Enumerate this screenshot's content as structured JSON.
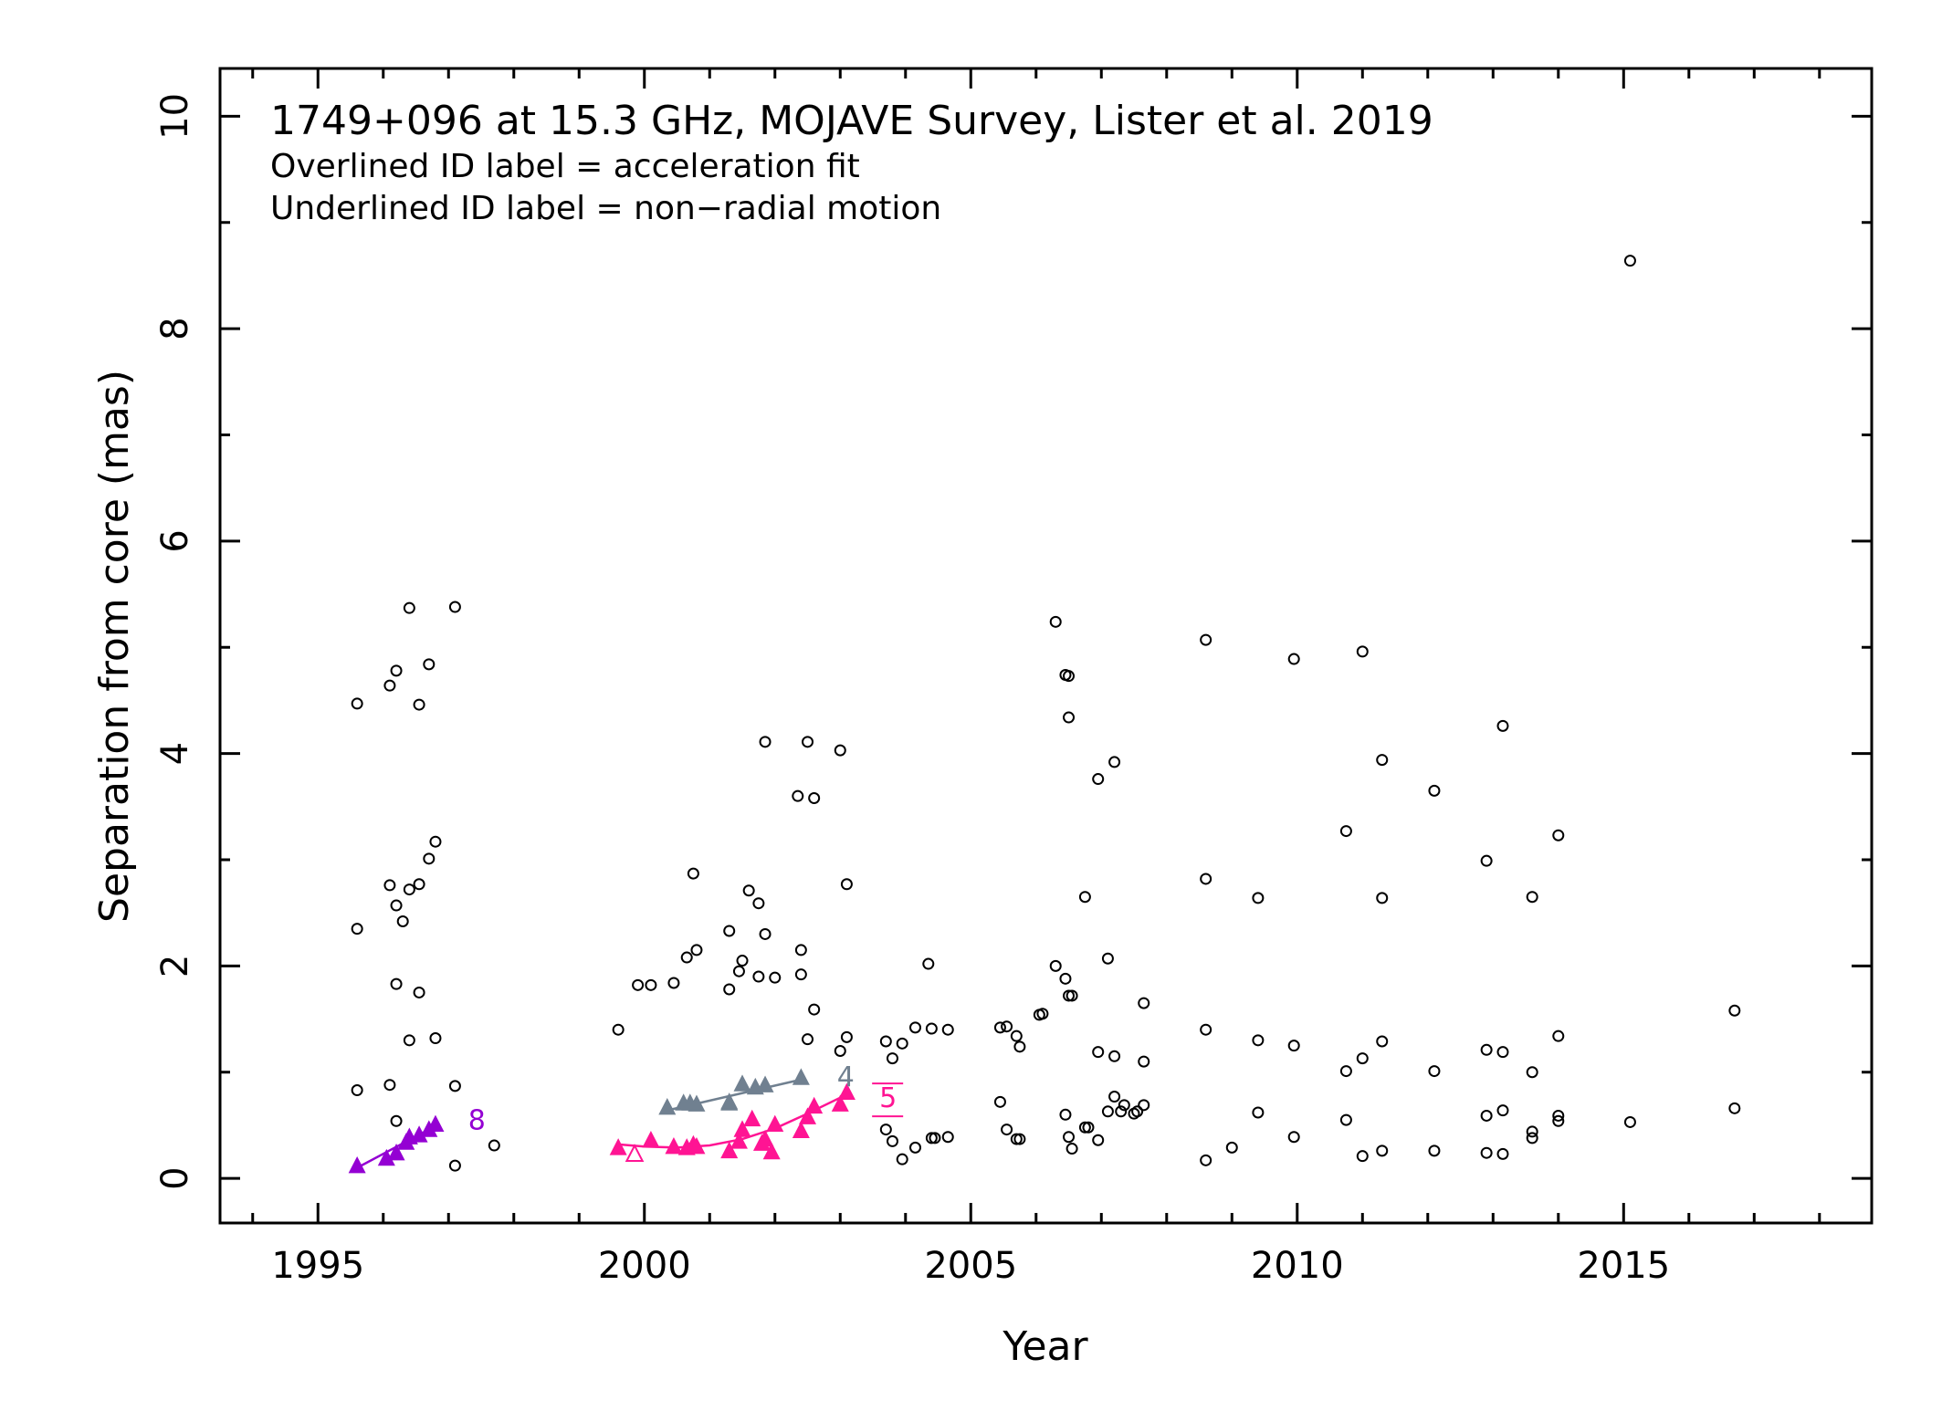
{
  "chart_data": {
    "type": "scatter",
    "title": "1749+096 at 15.3 GHz, MOJAVE Survey, Lister et al. 2019",
    "notes": [
      "Overlined ID label = acceleration fit",
      "Underlined ID label = non−radial motion"
    ],
    "xlabel": "Year",
    "ylabel": "Separation from core (mas)",
    "xlim": [
      1993.5,
      2018.8
    ],
    "ylim": [
      -0.42,
      10.45
    ],
    "x_ticks": [
      1995,
      2000,
      2005,
      2010,
      2015
    ],
    "y_ticks": [
      0,
      2,
      4,
      6,
      8,
      10
    ],
    "colors": {
      "axis": "#000000",
      "unassigned": "#000000"
    },
    "unassigned_points": [
      [
        1995.6,
        4.47
      ],
      [
        1995.6,
        2.35
      ],
      [
        1995.6,
        0.83
      ],
      [
        1996.1,
        4.64
      ],
      [
        1996.1,
        2.76
      ],
      [
        1996.1,
        0.88
      ],
      [
        1996.2,
        4.78
      ],
      [
        1996.2,
        2.57
      ],
      [
        1996.2,
        1.83
      ],
      [
        1996.2,
        0.54
      ],
      [
        1996.3,
        2.42
      ],
      [
        1996.4,
        5.37
      ],
      [
        1996.4,
        2.72
      ],
      [
        1996.4,
        1.3
      ],
      [
        1996.55,
        4.46
      ],
      [
        1996.55,
        2.77
      ],
      [
        1996.55,
        1.75
      ],
      [
        1996.7,
        4.84
      ],
      [
        1996.7,
        3.01
      ],
      [
        1996.8,
        3.17
      ],
      [
        1996.8,
        1.32
      ],
      [
        1997.1,
        5.38
      ],
      [
        1997.1,
        0.87
      ],
      [
        1997.1,
        0.12
      ],
      [
        1997.7,
        0.31
      ],
      [
        1999.6,
        1.4
      ],
      [
        1999.9,
        1.82
      ],
      [
        2000.1,
        1.82
      ],
      [
        2000.45,
        1.84
      ],
      [
        2000.65,
        2.08
      ],
      [
        2000.75,
        2.87
      ],
      [
        2000.8,
        2.15
      ],
      [
        2001.3,
        2.33
      ],
      [
        2001.3,
        1.78
      ],
      [
        2001.45,
        1.95
      ],
      [
        2001.5,
        2.05
      ],
      [
        2001.6,
        2.71
      ],
      [
        2001.75,
        2.59
      ],
      [
        2001.75,
        1.9
      ],
      [
        2001.85,
        2.3
      ],
      [
        2001.85,
        4.11
      ],
      [
        2002.0,
        1.89
      ],
      [
        2002.35,
        3.6
      ],
      [
        2002.4,
        2.15
      ],
      [
        2002.4,
        1.92
      ],
      [
        2002.5,
        4.11
      ],
      [
        2002.5,
        1.31
      ],
      [
        2002.6,
        3.58
      ],
      [
        2002.6,
        1.59
      ],
      [
        2003.0,
        4.03
      ],
      [
        2003.0,
        1.2
      ],
      [
        2003.1,
        2.77
      ],
      [
        2003.1,
        1.33
      ],
      [
        2003.7,
        1.29
      ],
      [
        2003.7,
        0.46
      ],
      [
        2003.8,
        1.13
      ],
      [
        2003.8,
        0.35
      ],
      [
        2003.95,
        1.27
      ],
      [
        2003.95,
        0.18
      ],
      [
        2004.15,
        1.42
      ],
      [
        2004.15,
        0.29
      ],
      [
        2004.35,
        2.02
      ],
      [
        2004.4,
        1.41
      ],
      [
        2004.4,
        0.38
      ],
      [
        2004.45,
        0.38
      ],
      [
        2004.65,
        1.4
      ],
      [
        2004.65,
        0.39
      ],
      [
        2005.45,
        1.42
      ],
      [
        2005.45,
        0.72
      ],
      [
        2005.55,
        1.43
      ],
      [
        2005.55,
        0.46
      ],
      [
        2005.7,
        1.34
      ],
      [
        2005.7,
        0.37
      ],
      [
        2005.75,
        1.24
      ],
      [
        2005.75,
        0.37
      ],
      [
        2006.05,
        1.54
      ],
      [
        2006.1,
        1.55
      ],
      [
        2006.3,
        5.24
      ],
      [
        2006.3,
        2.0
      ],
      [
        2006.45,
        4.74
      ],
      [
        2006.45,
        1.88
      ],
      [
        2006.45,
        0.6
      ],
      [
        2006.5,
        4.73
      ],
      [
        2006.5,
        4.34
      ],
      [
        2006.5,
        1.72
      ],
      [
        2006.5,
        0.39
      ],
      [
        2006.55,
        1.72
      ],
      [
        2006.55,
        0.28
      ],
      [
        2006.75,
        2.65
      ],
      [
        2006.75,
        0.48
      ],
      [
        2006.8,
        0.48
      ],
      [
        2006.95,
        3.76
      ],
      [
        2006.95,
        1.19
      ],
      [
        2006.95,
        0.36
      ],
      [
        2007.1,
        2.07
      ],
      [
        2007.1,
        0.63
      ],
      [
        2007.2,
        3.92
      ],
      [
        2007.2,
        1.15
      ],
      [
        2007.2,
        0.77
      ],
      [
        2007.3,
        0.63
      ],
      [
        2007.35,
        0.69
      ],
      [
        2007.5,
        0.61
      ],
      [
        2007.55,
        0.63
      ],
      [
        2007.65,
        1.65
      ],
      [
        2007.65,
        1.1
      ],
      [
        2007.65,
        0.69
      ],
      [
        2008.6,
        5.07
      ],
      [
        2008.6,
        2.82
      ],
      [
        2008.6,
        1.4
      ],
      [
        2008.6,
        0.17
      ],
      [
        2009.0,
        0.29
      ],
      [
        2009.4,
        2.64
      ],
      [
        2009.4,
        1.3
      ],
      [
        2009.4,
        0.62
      ],
      [
        2009.95,
        4.89
      ],
      [
        2009.95,
        1.25
      ],
      [
        2009.95,
        0.39
      ],
      [
        2010.75,
        3.27
      ],
      [
        2010.75,
        1.01
      ],
      [
        2010.75,
        0.55
      ],
      [
        2011.0,
        4.96
      ],
      [
        2011.0,
        1.13
      ],
      [
        2011.0,
        0.21
      ],
      [
        2011.3,
        3.94
      ],
      [
        2011.3,
        2.64
      ],
      [
        2011.3,
        1.29
      ],
      [
        2011.3,
        0.26
      ],
      [
        2012.1,
        3.65
      ],
      [
        2012.1,
        1.01
      ],
      [
        2012.1,
        0.26
      ],
      [
        2012.9,
        2.99
      ],
      [
        2012.9,
        1.21
      ],
      [
        2012.9,
        0.59
      ],
      [
        2012.9,
        0.24
      ],
      [
        2013.15,
        4.26
      ],
      [
        2013.15,
        1.19
      ],
      [
        2013.15,
        0.64
      ],
      [
        2013.15,
        0.23
      ],
      [
        2013.6,
        2.65
      ],
      [
        2013.6,
        1.0
      ],
      [
        2013.6,
        0.44
      ],
      [
        2013.6,
        0.38
      ],
      [
        2014.0,
        3.23
      ],
      [
        2014.0,
        1.34
      ],
      [
        2014.0,
        0.59
      ],
      [
        2014.0,
        0.54
      ],
      [
        2015.1,
        8.64
      ],
      [
        2015.1,
        0.53
      ],
      [
        2016.7,
        1.58
      ],
      [
        2016.7,
        0.66
      ]
    ],
    "series": [
      {
        "name": "8",
        "color": "#9400d3",
        "marker": "filled-triangle",
        "points": [
          [
            1995.6,
            0.12
          ],
          [
            1996.05,
            0.19
          ],
          [
            1996.2,
            0.24
          ],
          [
            1996.35,
            0.34
          ],
          [
            1996.4,
            0.39
          ],
          [
            1996.55,
            0.41
          ],
          [
            1996.7,
            0.46
          ],
          [
            1996.8,
            0.51
          ]
        ],
        "fit": [
          [
            1995.6,
            0.1
          ],
          [
            1996.85,
            0.51
          ]
        ]
      },
      {
        "name": "4",
        "color": "#708090",
        "marker": "filled-triangle",
        "points": [
          [
            2000.35,
            0.67
          ],
          [
            2000.6,
            0.71
          ],
          [
            2000.7,
            0.71
          ],
          [
            2000.8,
            0.7
          ],
          [
            2001.3,
            0.72
          ],
          [
            2001.3,
            0.71
          ],
          [
            2001.5,
            0.89
          ],
          [
            2001.7,
            0.86
          ],
          [
            2001.85,
            0.88
          ],
          [
            2002.4,
            0.95
          ]
        ],
        "fit": [
          [
            2000.35,
            0.64
          ],
          [
            2002.4,
            0.93
          ]
        ]
      },
      {
        "name": "5",
        "color": "#ff1493",
        "marker": "filled-triangle",
        "points": [
          [
            1999.6,
            0.29
          ],
          [
            2000.1,
            0.36
          ],
          [
            2000.45,
            0.3
          ],
          [
            2000.65,
            0.29
          ],
          [
            2000.75,
            0.32
          ],
          [
            2000.8,
            0.3
          ],
          [
            2001.3,
            0.26
          ],
          [
            2001.45,
            0.35
          ],
          [
            2001.5,
            0.46
          ],
          [
            2001.65,
            0.56
          ],
          [
            2001.8,
            0.33
          ],
          [
            2001.85,
            0.37
          ],
          [
            2001.95,
            0.25
          ],
          [
            2002.0,
            0.51
          ],
          [
            2002.4,
            0.45
          ],
          [
            2002.5,
            0.58
          ],
          [
            2002.6,
            0.68
          ],
          [
            2003.0,
            0.7
          ],
          [
            2003.1,
            0.81
          ]
        ],
        "open_points": [
          [
            1999.85,
            0.23
          ]
        ],
        "fit": [
          [
            1999.6,
            0.32
          ],
          [
            2000.0,
            0.3
          ],
          [
            2000.5,
            0.29
          ],
          [
            2001.0,
            0.31
          ],
          [
            2001.5,
            0.37
          ],
          [
            2002.0,
            0.47
          ],
          [
            2002.5,
            0.61
          ],
          [
            2003.0,
            0.76
          ],
          [
            2003.1,
            0.8
          ]
        ]
      }
    ],
    "series_labels": [
      {
        "text": "8",
        "at": [
          1997.3,
          0.58
        ]
      },
      {
        "text": "4",
        "at": [
          2002.95,
          0.99
        ]
      },
      {
        "text": "5",
        "at": [
          2003.6,
          0.79
        ]
      }
    ]
  }
}
